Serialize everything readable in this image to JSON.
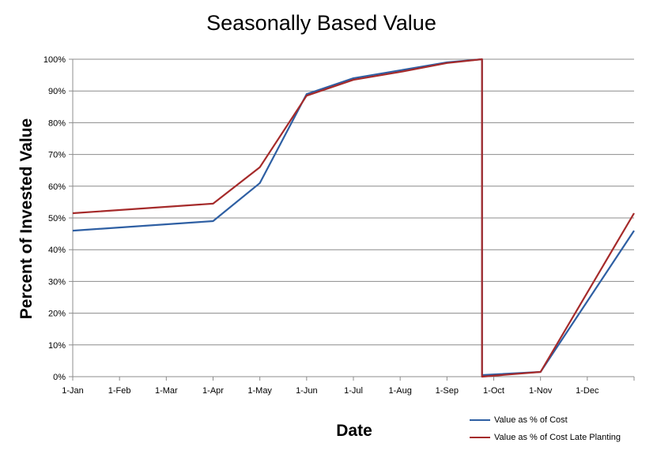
{
  "chart_data": {
    "type": "line",
    "title": "Seasonally Based Value",
    "xlabel": "Date",
    "ylabel": "Percent of Invested Value",
    "categories": [
      "1-Jan",
      "1-Feb",
      "1-Mar",
      "1-Apr",
      "1-May",
      "1-Jun",
      "1-Jul",
      "1-Aug",
      "1-Sep",
      "1-Oct",
      "1-Nov",
      "1-Dec"
    ],
    "x_range": [
      0,
      12
    ],
    "ylim": [
      0,
      100
    ],
    "yticks": [
      "0%",
      "10%",
      "20%",
      "30%",
      "40%",
      "50%",
      "60%",
      "70%",
      "80%",
      "90%",
      "100%"
    ],
    "grid": true,
    "legend_position": "bottom-right",
    "series": [
      {
        "name": "Value as % of Cost",
        "color": "#2e5fa3",
        "points": [
          {
            "x": 0,
            "y": 46
          },
          {
            "x": 3,
            "y": 49
          },
          {
            "x": 4,
            "y": 61
          },
          {
            "x": 5,
            "y": 89
          },
          {
            "x": 6,
            "y": 94
          },
          {
            "x": 7,
            "y": 96.5
          },
          {
            "x": 8,
            "y": 99
          },
          {
            "x": 8.75,
            "y": 100
          },
          {
            "x": 8.75,
            "y": 0.5
          },
          {
            "x": 10,
            "y": 1.5
          },
          {
            "x": 12,
            "y": 46
          }
        ]
      },
      {
        "name": "Value as % of Cost Late Planting",
        "color": "#a52a2a",
        "points": [
          {
            "x": 0,
            "y": 51.5
          },
          {
            "x": 3,
            "y": 54.5
          },
          {
            "x": 4,
            "y": 66
          },
          {
            "x": 5,
            "y": 88.5
          },
          {
            "x": 6,
            "y": 93.5
          },
          {
            "x": 7,
            "y": 96
          },
          {
            "x": 8,
            "y": 98.8
          },
          {
            "x": 8.75,
            "y": 100
          },
          {
            "x": 8.75,
            "y": 0
          },
          {
            "x": 10,
            "y": 1.5
          },
          {
            "x": 12,
            "y": 51.5
          }
        ]
      }
    ]
  }
}
